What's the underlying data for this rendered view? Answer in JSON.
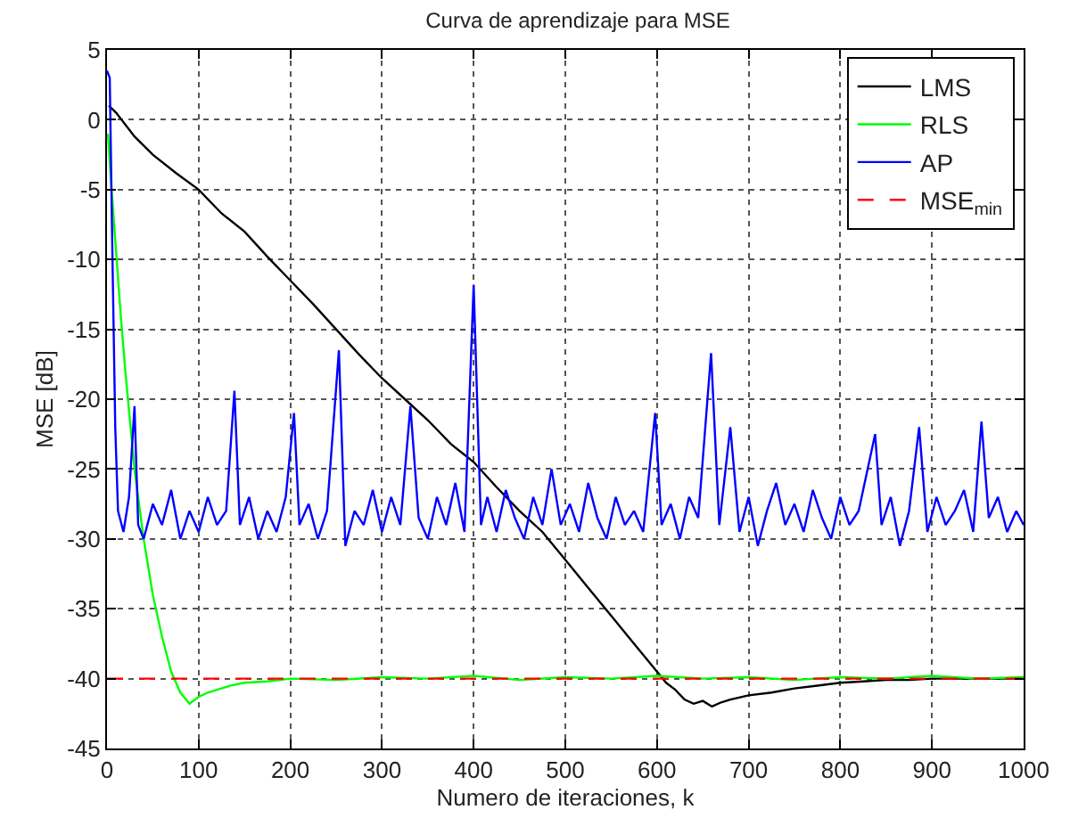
{
  "chart_data": {
    "type": "line",
    "title": "Curva de aprendizaje para MSE",
    "xlabel": "Numero de iteraciones, k",
    "ylabel": "MSE [dB]",
    "xlim": [
      0,
      1000
    ],
    "xticks": [
      0,
      100,
      200,
      300,
      400,
      500,
      600,
      700,
      800,
      900,
      1000
    ],
    "ylim": [
      -45,
      5
    ],
    "yticks": [
      -45,
      -40,
      -35,
      -30,
      -25,
      -20,
      -15,
      -10,
      -5,
      0,
      5
    ],
    "grid": true,
    "legend": "top right",
    "line_style": "solid",
    "marker": "none",
    "series": [
      {
        "name": "LMS",
        "color": "#000000",
        "x": [
          2,
          10,
          30,
          50,
          75,
          100,
          125,
          150,
          175,
          200,
          225,
          250,
          275,
          300,
          325,
          350,
          375,
          400,
          425,
          450,
          475,
          500,
          525,
          550,
          575,
          600,
          610,
          620,
          630,
          640,
          650,
          660,
          670,
          680,
          700,
          725,
          750,
          775,
          800,
          825,
          850,
          875,
          900,
          950,
          1000
        ],
        "values": [
          1,
          0.5,
          -1.2,
          -2.5,
          -3.8,
          -5,
          -6.7,
          -8,
          -9.8,
          -11.5,
          -13.2,
          -15,
          -16.8,
          -18.5,
          -20,
          -21.5,
          -23.2,
          -24.5,
          -26.3,
          -28,
          -29.5,
          -31.5,
          -33.5,
          -35.5,
          -37.5,
          -39.5,
          -40.3,
          -40.8,
          -41.5,
          -41.8,
          -41.6,
          -42,
          -41.7,
          -41.5,
          -41.2,
          -41,
          -40.7,
          -40.5,
          -40.3,
          -40.2,
          -40.1,
          -40.1,
          -40,
          -40,
          -40
        ]
      },
      {
        "name": "RLS",
        "color": "#00ff00",
        "x": [
          1,
          5,
          10,
          15,
          20,
          30,
          40,
          50,
          60,
          70,
          80,
          90,
          100,
          110,
          120,
          135,
          150,
          175,
          200,
          250,
          300,
          350,
          400,
          450,
          500,
          550,
          600,
          650,
          700,
          750,
          800,
          850,
          900,
          950,
          1000
        ],
        "values": [
          -1,
          -5,
          -9.5,
          -14,
          -18,
          -25,
          -30,
          -34,
          -37,
          -39.5,
          -41,
          -41.8,
          -41.3,
          -41,
          -40.8,
          -40.5,
          -40.3,
          -40.2,
          -40,
          -40.1,
          -39.9,
          -40,
          -39.8,
          -40.1,
          -39.9,
          -40,
          -39.8,
          -40,
          -39.9,
          -40.1,
          -39.9,
          -40,
          -39.8,
          -40,
          -39.9
        ]
      },
      {
        "name": "AP",
        "color": "#0000ff",
        "x": [
          0,
          3,
          6,
          9,
          12,
          18,
          24,
          30,
          34,
          40,
          50,
          60,
          70,
          80,
          90,
          100,
          110,
          120,
          130,
          139,
          145,
          155,
          165,
          175,
          185,
          195,
          204,
          210,
          220,
          230,
          240,
          253,
          260,
          270,
          280,
          290,
          300,
          310,
          320,
          331,
          340,
          350,
          360,
          370,
          380,
          390,
          400,
          408,
          415,
          425,
          435,
          445,
          455,
          465,
          475,
          485,
          495,
          505,
          515,
          525,
          535,
          545,
          555,
          565,
          575,
          585,
          598,
          605,
          615,
          625,
          635,
          645,
          659,
          668,
          680,
          690,
          700,
          710,
          720,
          730,
          740,
          750,
          760,
          770,
          780,
          790,
          800,
          810,
          820,
          838,
          845,
          855,
          865,
          875,
          886,
          895,
          905,
          915,
          925,
          935,
          945,
          954,
          962,
          972,
          982,
          992,
          1000
        ],
        "values": [
          3.5,
          3,
          -10,
          -22,
          -28,
          -29.5,
          -27,
          -20.5,
          -29,
          -30,
          -27.5,
          -29,
          -26.5,
          -30,
          -28,
          -29.5,
          -27,
          -29,
          -28,
          -19.4,
          -29,
          -27,
          -30,
          -28,
          -29.5,
          -27,
          -21,
          -29,
          -27.5,
          -30,
          -28,
          -16.5,
          -30.5,
          -28,
          -29,
          -26.5,
          -29.5,
          -27,
          -29,
          -20.5,
          -28.5,
          -30,
          -27,
          -29,
          -26,
          -29.5,
          -11.8,
          -29,
          -27,
          -29.5,
          -26.5,
          -28.5,
          -30,
          -27,
          -29,
          -25,
          -29,
          -27.5,
          -29.5,
          -26,
          -28.5,
          -30,
          -27,
          -29,
          -28,
          -29.5,
          -21,
          -29,
          -27.5,
          -30,
          -27,
          -28.5,
          -16.7,
          -29,
          -22,
          -29.5,
          -27,
          -30.5,
          -28,
          -26,
          -29,
          -27.5,
          -29.5,
          -26.5,
          -28.5,
          -30,
          -27,
          -29,
          -28,
          -22.5,
          -29,
          -27,
          -30.5,
          -28,
          -22,
          -29.5,
          -27,
          -29,
          -28,
          -26.5,
          -29.5,
          -21.6,
          -28.5,
          -27,
          -29.5,
          -28,
          -29
        ]
      },
      {
        "name": "MSE$_{min}$",
        "color": "#ff0000",
        "line_style": "dashed",
        "x": [
          0,
          1000
        ],
        "values": [
          -40,
          -40
        ]
      }
    ]
  }
}
